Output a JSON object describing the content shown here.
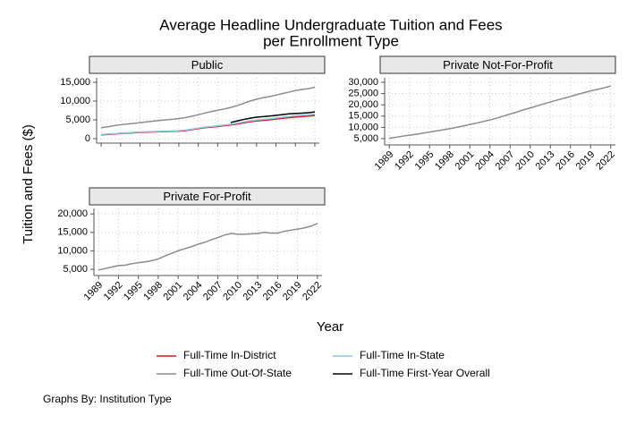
{
  "figure": {
    "title": [
      "Average Headline Undergraduate Tuition and Fees",
      "per Enrollment Type"
    ],
    "xlabel": "Year",
    "ylabel": "Tuition and Fees ($)",
    "note": "Graphs By: Institution Type",
    "legend": "bottom"
  },
  "chart_data": [
    {
      "type": "line",
      "title": "Public",
      "grid": true,
      "x": [
        1989,
        1990,
        1991,
        1992,
        1993,
        1994,
        1995,
        1996,
        1997,
        1998,
        1999,
        2000,
        2001,
        2002,
        2003,
        2004,
        2005,
        2006,
        2007,
        2008,
        2009,
        2010,
        2011,
        2012,
        2013,
        2014,
        2015,
        2016,
        2017,
        2018,
        2019,
        2020,
        2021,
        2022
      ],
      "xlim": [
        1988.3,
        2022.7
      ],
      "xticks": [
        1989,
        1992,
        1995,
        1998,
        2001,
        2004,
        2007,
        2010,
        2013,
        2016,
        2019,
        2022
      ],
      "ylim": [
        -1200,
        16200
      ],
      "yticks": [
        0,
        {
          "value": 5000,
          "label": "5,000"
        },
        {
          "value": 10000,
          "label": "10,000"
        },
        {
          "value": 15000,
          "label": "15,000"
        }
      ],
      "series": [
        {
          "name": "Full-Time In-District",
          "color": "#d7191c",
          "values": [
            1000,
            1100,
            1200,
            1350,
            1450,
            1550,
            1650,
            1730,
            1780,
            1830,
            1880,
            1920,
            2000,
            2150,
            2400,
            2650,
            2900,
            3050,
            3250,
            3450,
            3650,
            3900,
            4200,
            4500,
            4700,
            4850,
            5000,
            5200,
            5400,
            5600,
            5750,
            5900,
            6000,
            6150
          ]
        },
        {
          "name": "Full-Time In-State",
          "color": "#8ec3e6",
          "values": [
            1100,
            1200,
            1300,
            1450,
            1550,
            1650,
            1750,
            1830,
            1880,
            1930,
            1980,
            2030,
            2110,
            2270,
            2530,
            2790,
            3050,
            3210,
            3420,
            3630,
            3840,
            4100,
            4420,
            4730,
            4950,
            5110,
            5270,
            5480,
            5700,
            5910,
            6070,
            6230,
            6350,
            6550
          ]
        },
        {
          "name": "Full-Time Out-Of-State",
          "color": "#8c8c8c",
          "values": [
            2900,
            3150,
            3450,
            3700,
            3900,
            4050,
            4250,
            4450,
            4650,
            4850,
            5000,
            5150,
            5350,
            5600,
            5950,
            6350,
            6800,
            7200,
            7550,
            7900,
            8300,
            8800,
            9400,
            10000,
            10500,
            10900,
            11200,
            11600,
            12000,
            12400,
            12800,
            13100,
            13300,
            13700
          ]
        },
        {
          "name": "Full-Time First-Year Overall",
          "color": "#000000",
          "values": [
            null,
            null,
            null,
            null,
            null,
            null,
            null,
            null,
            null,
            null,
            null,
            null,
            null,
            null,
            null,
            null,
            null,
            null,
            null,
            null,
            4300,
            4700,
            5100,
            5450,
            5700,
            5850,
            6000,
            6200,
            6400,
            6600,
            6700,
            6800,
            6900,
            7100
          ]
        }
      ]
    },
    {
      "type": "line",
      "title": "Private Not-For-Profit",
      "grid": true,
      "x": [
        1989,
        1990,
        1991,
        1992,
        1993,
        1994,
        1995,
        1996,
        1997,
        1998,
        1999,
        2000,
        2001,
        2002,
        2003,
        2004,
        2005,
        2006,
        2007,
        2008,
        2009,
        2010,
        2011,
        2012,
        2013,
        2014,
        2015,
        2016,
        2017,
        2018,
        2019,
        2020,
        2021,
        2022
      ],
      "xlim": [
        1988.3,
        2022.7
      ],
      "xticks": [
        1989,
        1992,
        1995,
        1998,
        2001,
        2004,
        2007,
        2010,
        2013,
        2016,
        2019,
        2022
      ],
      "ylim": [
        2200,
        32000
      ],
      "yticks": [
        {
          "value": 5000,
          "label": "5,000"
        },
        {
          "value": 10000,
          "label": "10,000"
        },
        {
          "value": 15000,
          "label": "15,000"
        },
        {
          "value": 20000,
          "label": "20,000"
        },
        {
          "value": 25000,
          "label": "25,000"
        },
        {
          "value": 30000,
          "label": "30,000"
        }
      ],
      "series": [
        {
          "name": "Full-Time Out-Of-State",
          "color": "#8c8c8c",
          "values": [
            5200,
            5600,
            6100,
            6500,
            6900,
            7400,
            7900,
            8400,
            8900,
            9400,
            10000,
            10600,
            11300,
            11900,
            12600,
            13300,
            14100,
            15000,
            15900,
            16800,
            17800,
            18600,
            19500,
            20400,
            21300,
            22100,
            22900,
            23700,
            24600,
            25400,
            26200,
            26900,
            27500,
            28400
          ]
        }
      ]
    },
    {
      "type": "line",
      "title": "Private For-Profit",
      "grid": true,
      "x": [
        1989,
        1990,
        1991,
        1992,
        1993,
        1994,
        1995,
        1996,
        1997,
        1998,
        1999,
        2000,
        2001,
        2002,
        2003,
        2004,
        2005,
        2006,
        2007,
        2008,
        2009,
        2010,
        2011,
        2012,
        2013,
        2014,
        2015,
        2016,
        2017,
        2018,
        2019,
        2020,
        2021,
        2022
      ],
      "xlim": [
        1988.3,
        2022.7
      ],
      "xticks": [
        1989,
        1992,
        1995,
        1998,
        2001,
        2004,
        2007,
        2010,
        2013,
        2016,
        2019,
        2022
      ],
      "ylim": [
        3300,
        21500
      ],
      "yticks": [
        {
          "value": 5000,
          "label": "5,000"
        },
        {
          "value": 10000,
          "label": "10,000"
        },
        {
          "value": 15000,
          "label": "15,000"
        },
        {
          "value": 20000,
          "label": "20,000"
        }
      ],
      "series": [
        {
          "name": "Full-Time Out-Of-State",
          "color": "#8c8c8c",
          "values": [
            4800,
            5200,
            5600,
            6000,
            6100,
            6500,
            6800,
            7000,
            7300,
            7800,
            8600,
            9300,
            10000,
            10600,
            11100,
            11800,
            12300,
            13000,
            13600,
            14300,
            14700,
            14500,
            14500,
            14600,
            14700,
            15000,
            14800,
            14800,
            15300,
            15600,
            15900,
            16200,
            16700,
            17400
          ]
        }
      ]
    }
  ]
}
